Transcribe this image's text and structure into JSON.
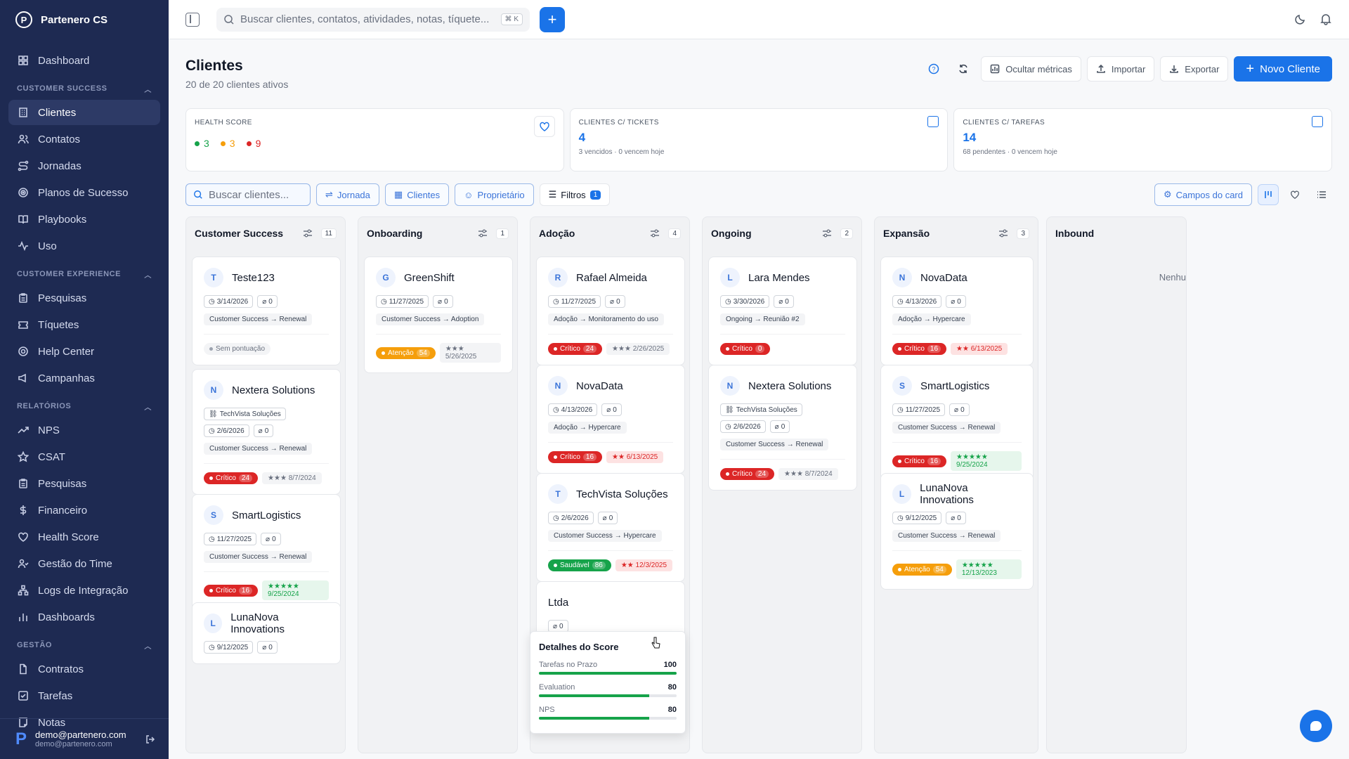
{
  "app": {
    "name": "Partenero CS"
  },
  "sidebar": {
    "top": [
      {
        "label": "Dashboard",
        "icon": "grid-icon"
      }
    ],
    "sections": [
      {
        "title": "CUSTOMER SUCCESS",
        "items": [
          {
            "label": "Clientes",
            "icon": "building-icon",
            "active": true
          },
          {
            "label": "Contatos",
            "icon": "users-icon"
          },
          {
            "label": "Jornadas",
            "icon": "route-icon"
          },
          {
            "label": "Planos de Sucesso",
            "icon": "target-icon"
          },
          {
            "label": "Playbooks",
            "icon": "book-icon"
          },
          {
            "label": "Uso",
            "icon": "activity-icon"
          }
        ]
      },
      {
        "title": "CUSTOMER EXPERIENCE",
        "items": [
          {
            "label": "Pesquisas",
            "icon": "clipboard-icon"
          },
          {
            "label": "Tíquetes",
            "icon": "ticket-icon"
          },
          {
            "label": "Help Center",
            "icon": "help-icon"
          },
          {
            "label": "Campanhas",
            "icon": "megaphone-icon"
          }
        ]
      },
      {
        "title": "RELATÓRIOS",
        "items": [
          {
            "label": "NPS",
            "icon": "trend-icon"
          },
          {
            "label": "CSAT",
            "icon": "star-icon"
          },
          {
            "label": "Pesquisas",
            "icon": "clipboard-icon"
          },
          {
            "label": "Financeiro",
            "icon": "dollar-icon"
          },
          {
            "label": "Health Score",
            "icon": "heart-icon"
          },
          {
            "label": "Gestão do Time",
            "icon": "team-icon"
          },
          {
            "label": "Logs de Integração",
            "icon": "network-icon"
          },
          {
            "label": "Dashboards",
            "icon": "bar-chart-icon"
          }
        ]
      },
      {
        "title": "GESTÃO",
        "items": [
          {
            "label": "Contratos",
            "icon": "file-icon"
          },
          {
            "label": "Tarefas",
            "icon": "check-square-icon"
          },
          {
            "label": "Notas",
            "icon": "note-icon"
          }
        ]
      }
    ],
    "user": {
      "name": "demo@partenero.com",
      "email": "demo@partenero.com"
    }
  },
  "topbar": {
    "search_placeholder": "Buscar clientes, contatos, atividades, notas, tíquete...",
    "shortcut": "⌘ K",
    "add": "+"
  },
  "page": {
    "title": "Clientes",
    "subtitle": "20 de 20 clientes ativos",
    "actions": {
      "hide_metrics": "Ocultar métricas",
      "import": "Importar",
      "export": "Exportar",
      "new": "Novo Cliente"
    }
  },
  "metrics": {
    "health": {
      "label": "HEALTH SCORE",
      "green": "3",
      "orange": "3",
      "red": "9"
    },
    "tickets": {
      "label": "CLIENTES C/ TICKETS",
      "value": "4",
      "sub": "3 vencidos · 0 vencem hoje"
    },
    "tasks": {
      "label": "CLIENTES C/ TAREFAS",
      "value": "14",
      "sub": "68 pendentes · 0 vencem hoje"
    }
  },
  "filters": {
    "search_placeholder": "Buscar clientes...",
    "jornada": "Jornada",
    "clientes": "Clientes",
    "proprietario": "Proprietário",
    "filtros": "Filtros",
    "filtros_count": "1",
    "card_fields": "Campos do card"
  },
  "columns": [
    {
      "title": "Customer Success",
      "count": "11",
      "cards": [
        {
          "initial": "T",
          "name": "Teste123",
          "meta": [
            "3/14/2026",
            "0"
          ],
          "stage": "Customer Success → Renewal",
          "score": {
            "kind": "none",
            "label": "Sem pontuação",
            "value": ""
          },
          "rating": null
        },
        {
          "initial": "N",
          "name": "Nextera Solutions",
          "meta": [
            "TechVista Soluções",
            "2/6/2026",
            "0"
          ],
          "stage": "Customer Success → Renewal",
          "score": {
            "kind": "critico",
            "label": "Crítico",
            "value": "24"
          },
          "rating": {
            "kind": "gray",
            "text": "★★★  8/7/2024"
          }
        },
        {
          "initial": "S",
          "name": "SmartLogistics",
          "meta": [
            "11/27/2025",
            "0"
          ],
          "stage": "Customer Success → Renewal",
          "score": {
            "kind": "critico",
            "label": "Crítico",
            "value": "16"
          },
          "rating": {
            "kind": "green",
            "text": "★★★★★  9/25/2024"
          }
        },
        {
          "initial": "L",
          "name": "LunaNova Innovations",
          "meta": [
            "9/12/2025",
            "0"
          ],
          "stage": "",
          "score": null,
          "rating": null
        }
      ]
    },
    {
      "title": "Onboarding",
      "count": "1",
      "cards": [
        {
          "initial": "G",
          "name": "GreenShift",
          "meta": [
            "11/27/2025",
            "0"
          ],
          "stage": "Customer Success → Adoption",
          "score": {
            "kind": "atencao",
            "label": "Atenção",
            "value": "54"
          },
          "rating": {
            "kind": "gray",
            "text": "★★★  5/26/2025"
          }
        }
      ]
    },
    {
      "title": "Adoção",
      "count": "4",
      "cards": [
        {
          "initial": "R",
          "name": "Rafael Almeida",
          "meta": [
            "11/27/2025",
            "0"
          ],
          "stage": "Adoção → Monitoramento do uso",
          "score": {
            "kind": "critico",
            "label": "Crítico",
            "value": "24"
          },
          "rating": {
            "kind": "gray",
            "text": "★★★  2/26/2025"
          }
        },
        {
          "initial": "N",
          "name": "NovaData",
          "meta": [
            "4/13/2026",
            "0"
          ],
          "stage": "Adoção → Hypercare",
          "score": {
            "kind": "critico",
            "label": "Crítico",
            "value": "16"
          },
          "rating": {
            "kind": "red",
            "text": "★★  6/13/2025"
          }
        },
        {
          "initial": "T",
          "name": "TechVista Soluções",
          "meta": [
            "2/6/2026",
            "0"
          ],
          "stage": "Customer Success → Hypercare",
          "score": {
            "kind": "saudavel",
            "label": "Saudável",
            "value": "86"
          },
          "rating": {
            "kind": "red",
            "text": "★★  12/3/2025"
          }
        },
        {
          "initial": "",
          "name": "Ltda",
          "meta": [
            "0"
          ],
          "stage": "",
          "score": null,
          "rating": null
        }
      ]
    },
    {
      "title": "Ongoing",
      "count": "2",
      "cards": [
        {
          "initial": "L",
          "name": "Lara Mendes",
          "meta": [
            "3/30/2026",
            "0"
          ],
          "stage": "Ongoing → Reunião #2",
          "score": {
            "kind": "critico",
            "label": "Crítico",
            "value": "0"
          },
          "rating": null
        },
        {
          "initial": "N",
          "name": "Nextera Solutions",
          "meta": [
            "TechVista Soluções",
            "2/6/2026",
            "0"
          ],
          "stage": "Customer Success → Renewal",
          "score": {
            "kind": "critico",
            "label": "Crítico",
            "value": "24"
          },
          "rating": {
            "kind": "gray",
            "text": "★★★  8/7/2024"
          }
        }
      ]
    },
    {
      "title": "Expansão",
      "count": "3",
      "cards": [
        {
          "initial": "N",
          "name": "NovaData",
          "meta": [
            "4/13/2026",
            "0"
          ],
          "stage": "Adoção → Hypercare",
          "score": {
            "kind": "critico",
            "label": "Crítico",
            "value": "16"
          },
          "rating": {
            "kind": "red",
            "text": "★★  6/13/2025"
          }
        },
        {
          "initial": "S",
          "name": "SmartLogistics",
          "meta": [
            "11/27/2025",
            "0"
          ],
          "stage": "Customer Success → Renewal",
          "score": {
            "kind": "critico",
            "label": "Crítico",
            "value": "16"
          },
          "rating": {
            "kind": "green",
            "text": "★★★★★  9/25/2024"
          }
        },
        {
          "initial": "L",
          "name": "LunaNova Innovations",
          "meta": [
            "9/12/2025",
            "0"
          ],
          "stage": "Customer Success → Renewal",
          "score": {
            "kind": "atencao",
            "label": "Atenção",
            "value": "54"
          },
          "rating": {
            "kind": "green",
            "text": "★★★★★  12/13/2023"
          }
        }
      ]
    },
    {
      "title": "Inbound",
      "count": "",
      "cards": [],
      "empty": "Nenhu"
    }
  ],
  "tooltip": {
    "title": "Detalhes do Score",
    "rows": [
      {
        "label": "Tarefas no Prazo",
        "value": "100",
        "pct": 100
      },
      {
        "label": "Evaluation",
        "value": "80",
        "pct": 80
      },
      {
        "label": "NPS",
        "value": "80",
        "pct": 80
      }
    ]
  }
}
